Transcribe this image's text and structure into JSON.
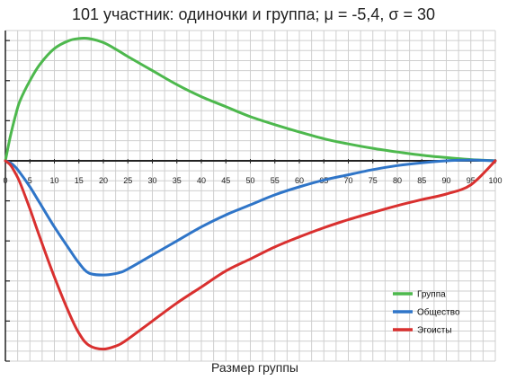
{
  "chart_data": {
    "type": "line",
    "title": "101 участник: одиночки и группа; μ = -5,4, σ = 30",
    "xlabel": "Размер группы",
    "ylabel": "",
    "xlim": [
      0,
      100
    ],
    "ylim": [
      -5,
      3.25
    ],
    "x_ticks": [
      0,
      5,
      10,
      15,
      20,
      25,
      30,
      35,
      40,
      45,
      50,
      55,
      60,
      65,
      70,
      75,
      80,
      85,
      90,
      95,
      100
    ],
    "x": [
      0,
      1,
      2,
      3,
      5,
      7,
      10,
      13,
      15,
      17,
      20,
      23,
      25,
      30,
      35,
      40,
      45,
      50,
      55,
      60,
      65,
      70,
      75,
      80,
      85,
      90,
      95,
      100
    ],
    "grid": true,
    "legend_position": "bottom-right",
    "series": [
      {
        "name": "Группа",
        "color": "#4db84d",
        "values": [
          0,
          0.6,
          1.1,
          1.5,
          2.0,
          2.4,
          2.8,
          3.0,
          3.05,
          3.05,
          2.95,
          2.75,
          2.6,
          2.25,
          1.9,
          1.6,
          1.35,
          1.1,
          0.9,
          0.72,
          0.55,
          0.42,
          0.31,
          0.22,
          0.14,
          0.08,
          0.03,
          0
        ]
      },
      {
        "name": "Общество",
        "color": "#2f75c8",
        "values": [
          0,
          -0.05,
          -0.15,
          -0.3,
          -0.65,
          -1.05,
          -1.65,
          -2.2,
          -2.55,
          -2.8,
          -2.85,
          -2.8,
          -2.7,
          -2.35,
          -2.0,
          -1.65,
          -1.35,
          -1.1,
          -0.85,
          -0.65,
          -0.48,
          -0.35,
          -0.22,
          -0.12,
          -0.05,
          -0.0,
          0.02,
          0
        ]
      },
      {
        "name": "Эгоисты",
        "color": "#d9302f",
        "values": [
          0,
          -0.1,
          -0.3,
          -0.55,
          -1.2,
          -1.9,
          -2.9,
          -3.8,
          -4.3,
          -4.6,
          -4.7,
          -4.6,
          -4.45,
          -4.0,
          -3.55,
          -3.15,
          -2.75,
          -2.45,
          -2.15,
          -1.9,
          -1.67,
          -1.47,
          -1.29,
          -1.12,
          -0.97,
          -0.83,
          -0.6,
          0
        ]
      }
    ]
  }
}
